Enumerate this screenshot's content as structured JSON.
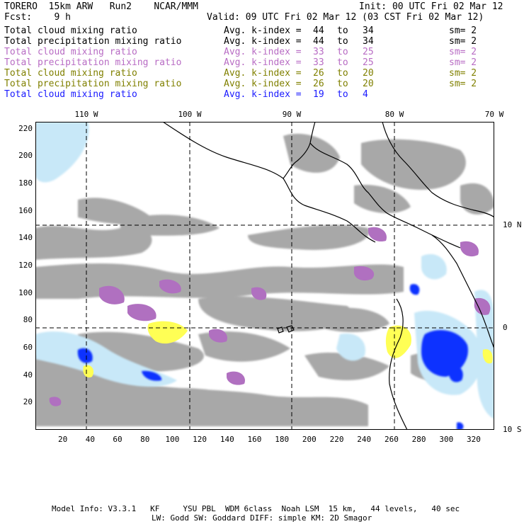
{
  "header": {
    "line1_left": "TORERO  15km ARW   Run2    NCAR/MMM",
    "line1_right": "Init: 00 UTC Fri 02 Mar 12",
    "line2_left": "Fcst:    9 h",
    "line2_right": "Valid: 09 UTC Fri 02 Mar 12 (03 CST Fri 02 Mar 12)"
  },
  "legend_rows": [
    {
      "label": "Total cloud mixing ratio",
      "avg": "Avg. k-index =",
      "k1": "44",
      "to": "to",
      "k2": "34",
      "sm": "sm= 2",
      "color": "#000000"
    },
    {
      "label": "Total precipitation mixing ratio",
      "avg": "Avg. k-index =",
      "k1": "44",
      "to": "to",
      "k2": "34",
      "sm": "sm= 2",
      "color": "#000000"
    },
    {
      "label": "Total cloud mixing ratio",
      "avg": "Avg. k-index =",
      "k1": "33",
      "to": "to",
      "k2": "25",
      "sm": "sm= 2",
      "color": "#b86cc4"
    },
    {
      "label": "Total precipitation mixing ratio",
      "avg": "Avg. k-index =",
      "k1": "33",
      "to": "to",
      "k2": "25",
      "sm": "sm= 2",
      "color": "#b86cc4"
    },
    {
      "label": "Total cloud mixing ratio",
      "avg": "Avg. k-index =",
      "k1": "26",
      "to": "to",
      "k2": "20",
      "sm": "sm= 2",
      "color": "#808000"
    },
    {
      "label": "Total precipitation mixing ratio",
      "avg": "Avg. k-index =",
      "k1": "26",
      "to": "to",
      "k2": "20",
      "sm": "sm= 2",
      "color": "#808000"
    },
    {
      "label": "Total cloud mixing ratio",
      "avg": "Avg. k-index =",
      "k1": "19",
      "to": "to",
      "k2": "4",
      "sm": "",
      "color": "#1a1aff"
    }
  ],
  "map": {
    "top_lon_labels": [
      "110 W",
      "100 W",
      "90 W",
      "80 W",
      "70 W"
    ],
    "right_lat_labels": [
      "10 N",
      "0",
      "10 S"
    ],
    "left_y_ticks": [
      "220",
      "200",
      "180",
      "160",
      "140",
      "120",
      "100",
      "80",
      "60",
      "40",
      "20"
    ],
    "bottom_x_ticks": [
      "20",
      "40",
      "60",
      "80",
      "100",
      "120",
      "140",
      "160",
      "180",
      "200",
      "220",
      "240",
      "260",
      "280",
      "300",
      "320"
    ],
    "colors": {
      "gray_cloud": "#a8a8a8",
      "purple": "#b070c0",
      "yellow": "#ffff55",
      "lightblue": "#c8e8f8",
      "blue": "#1030ff"
    }
  },
  "footer": {
    "line1": "Model Info: V3.3.1   KF     YSU PBL  WDM 6class  Noah LSM  15 km,   44 levels,   40 sec",
    "line2": "LW: Godd SW: Goddard DIFF: simple KM: 2D Smagor"
  }
}
